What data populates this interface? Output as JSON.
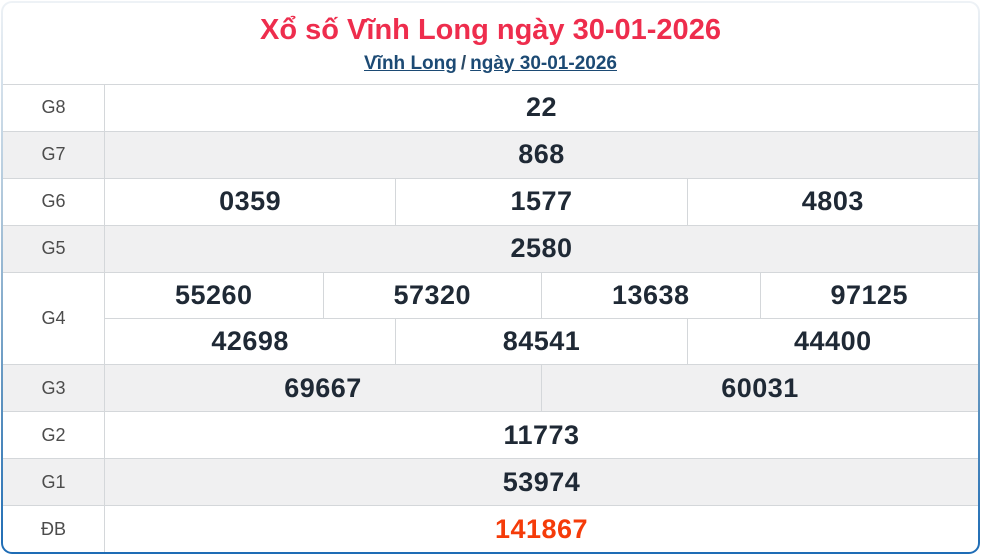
{
  "header": {
    "title": "Xổ số Vĩnh Long ngày 30-01-2026",
    "breadcrumb": {
      "province": "Vĩnh Long",
      "separator": "/",
      "date": "ngày 30-01-2026"
    }
  },
  "results": {
    "rows": [
      {
        "label": "G8",
        "special": false,
        "groups": [
          [
            "22"
          ]
        ]
      },
      {
        "label": "G7",
        "special": false,
        "groups": [
          [
            "868"
          ]
        ]
      },
      {
        "label": "G6",
        "special": false,
        "groups": [
          [
            "0359",
            "1577",
            "4803"
          ]
        ]
      },
      {
        "label": "G5",
        "special": false,
        "groups": [
          [
            "2580"
          ]
        ]
      },
      {
        "label": "G4",
        "special": false,
        "groups": [
          [
            "55260",
            "57320",
            "13638",
            "97125"
          ],
          [
            "42698",
            "84541",
            "44400"
          ]
        ]
      },
      {
        "label": "G3",
        "special": false,
        "groups": [
          [
            "69667",
            "60031"
          ]
        ]
      },
      {
        "label": "G2",
        "special": false,
        "groups": [
          [
            "11773"
          ]
        ]
      },
      {
        "label": "G1",
        "special": false,
        "groups": [
          [
            "53974"
          ]
        ]
      },
      {
        "label": "ĐB",
        "special": true,
        "groups": [
          [
            "141867"
          ]
        ]
      }
    ]
  },
  "colors": {
    "title_red": "#ee2d4d",
    "link_blue": "#1c4a74",
    "special_number_red": "#f53b09",
    "alt_row_bg": "#f0f0f1",
    "value_text": "#1f2935",
    "outer_border_blue": "#1e6cb5",
    "grid_line": "#d4d7da"
  }
}
